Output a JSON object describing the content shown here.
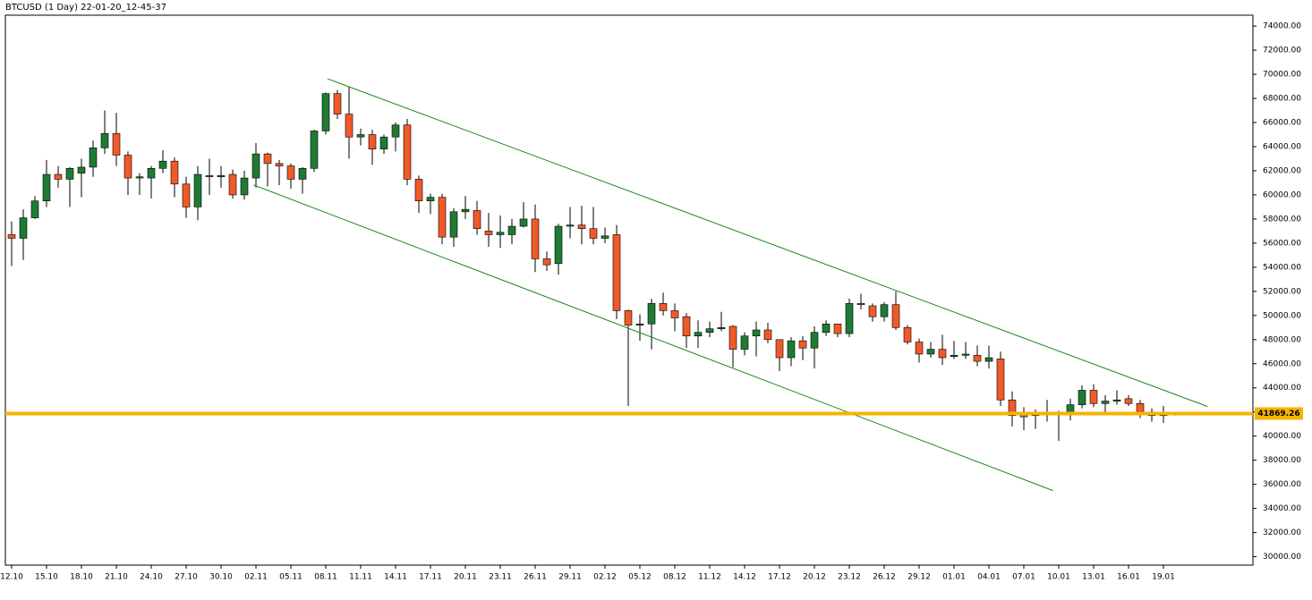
{
  "chart_data": {
    "type": "candlestick",
    "title": "BTCUSD (1 Day) 22-01-20_12-45-37",
    "categories": [
      "12.10",
      null,
      null,
      "15.10",
      null,
      null,
      "18.10",
      null,
      null,
      "21.10",
      null,
      null,
      "24.10",
      null,
      null,
      "27.10",
      null,
      null,
      "30.10",
      null,
      null,
      "02.11",
      null,
      null,
      "05.11",
      null,
      null,
      "08.11",
      null,
      null,
      "11.11",
      null,
      null,
      "14.11",
      null,
      null,
      "17.11",
      null,
      null,
      "20.11",
      null,
      null,
      "23.11",
      null,
      null,
      "26.11",
      null,
      null,
      "29.11",
      null,
      null,
      "02.12",
      null,
      null,
      "05.12",
      null,
      null,
      "08.12",
      null,
      null,
      "11.12",
      null,
      null,
      "14.12",
      null,
      null,
      "17.12",
      null,
      null,
      "20.12",
      null,
      null,
      "23.12",
      null,
      null,
      "26.12",
      null,
      null,
      "29.12",
      null,
      null,
      "01.01",
      null,
      null,
      "04.01",
      null,
      null,
      "07.01",
      null,
      null,
      "10.01",
      null,
      null,
      "13.01",
      null,
      null,
      "16.01",
      null,
      null,
      "19.01",
      null
    ],
    "open": [
      56700,
      56400,
      58100,
      59500,
      61700,
      61300,
      61800,
      62300,
      63900,
      65100,
      63300,
      61400,
      61400,
      62200,
      62800,
      60900,
      59000,
      61600,
      61500,
      61700,
      60000,
      61400,
      63400,
      62600,
      62400,
      61300,
      62200,
      65300,
      68400,
      66700,
      64800,
      65000,
      63800,
      64800,
      65800,
      61300,
      59500,
      59800,
      56500,
      58600,
      58700,
      57000,
      56700,
      56700,
      57400,
      58000,
      54700,
      54300,
      57400,
      57500,
      57200,
      56400,
      56700,
      50400,
      49200,
      49300,
      51000,
      50400,
      49900,
      48300,
      48600,
      48900,
      49100,
      47200,
      48300,
      48800,
      48000,
      46500,
      47900,
      47300,
      48600,
      49300,
      48500,
      51000,
      50800,
      49900,
      50900,
      49000,
      47800,
      46800,
      47200,
      46600,
      46700,
      46700,
      46200,
      46400,
      43000,
      41800,
      41700,
      41800,
      41900,
      41900,
      42600,
      43800,
      42700,
      42900,
      43100,
      42700,
      42000,
      41700,
      41800
    ],
    "high": [
      57800,
      58800,
      59900,
      62900,
      62400,
      62300,
      63000,
      64500,
      67000,
      66800,
      63600,
      61800,
      62400,
      63700,
      63100,
      61500,
      62400,
      63000,
      62400,
      62100,
      62000,
      64300,
      63500,
      62900,
      62600,
      62300,
      65400,
      68500,
      68700,
      69000,
      65500,
      65400,
      65000,
      66000,
      66300,
      61600,
      60100,
      60100,
      58900,
      59900,
      59500,
      58500,
      58300,
      58000,
      59400,
      59200,
      55300,
      57600,
      59000,
      59100,
      59000,
      57300,
      57500,
      50500,
      50100,
      51400,
      51900,
      51000,
      50200,
      49600,
      49500,
      50300,
      49200,
      48600,
      49500,
      49400,
      48000,
      48200,
      48300,
      49100,
      49600,
      49300,
      51400,
      51800,
      51000,
      51100,
      52000,
      49200,
      48100,
      47800,
      48400,
      47900,
      47800,
      47500,
      47500,
      47000,
      43700,
      42400,
      42200,
      43000,
      42100,
      43100,
      44200,
      44300,
      43400,
      43800,
      43400,
      43000,
      42300,
      42500,
      42000
    ],
    "low": [
      54100,
      54600,
      58000,
      59000,
      60600,
      59000,
      59800,
      61500,
      63400,
      62400,
      60000,
      60000,
      59700,
      61800,
      59800,
      58100,
      57900,
      60000,
      60600,
      59700,
      59600,
      60600,
      60700,
      60800,
      60500,
      60100,
      61900,
      65000,
      66300,
      63000,
      64100,
      62500,
      63400,
      63600,
      60800,
      58500,
      58400,
      55900,
      55700,
      58000,
      56700,
      55700,
      55600,
      55900,
      57300,
      53600,
      53700,
      53400,
      56400,
      55900,
      55900,
      56000,
      49700,
      42500,
      47900,
      47200,
      50000,
      48700,
      47300,
      47300,
      48200,
      48700,
      45700,
      46700,
      46600,
      47700,
      45400,
      45800,
      46300,
      45600,
      48300,
      48200,
      48200,
      50500,
      49500,
      49500,
      48800,
      47600,
      46100,
      46500,
      45900,
      46400,
      46400,
      45800,
      45600,
      42500,
      40800,
      40500,
      40600,
      41200,
      39600,
      41300,
      42300,
      42400,
      41800,
      42600,
      42500,
      41500,
      41200,
      41100,
      41700
    ],
    "close": [
      56400,
      58100,
      59500,
      61700,
      61300,
      62200,
      62300,
      63900,
      65100,
      63300,
      61400,
      61500,
      62200,
      62800,
      60900,
      59000,
      61700,
      61500,
      61600,
      60000,
      61400,
      63400,
      62600,
      62400,
      61300,
      62200,
      65300,
      68400,
      66700,
      64800,
      65000,
      63800,
      64800,
      65800,
      61300,
      59500,
      59800,
      56500,
      58600,
      58800,
      57200,
      56700,
      56900,
      57400,
      58000,
      54700,
      54200,
      57400,
      57500,
      57200,
      56400,
      56600,
      50400,
      49200,
      49300,
      51000,
      50400,
      49800,
      48300,
      48600,
      48900,
      49000,
      47200,
      48300,
      48800,
      48000,
      46500,
      47900,
      47300,
      48600,
      49300,
      48500,
      51000,
      50900,
      49900,
      50900,
      49000,
      47800,
      46800,
      47200,
      46500,
      46700,
      46800,
      46200,
      46500,
      43000,
      41700,
      41600,
      41900,
      41900,
      41900,
      42600,
      43800,
      42700,
      42900,
      43000,
      42700,
      42000,
      41700,
      41800,
      41869.26
    ],
    "up_color": "#1e7b34",
    "down_color": "#f05a28",
    "ylim": [
      29300,
      74900
    ],
    "yticks": [
      {
        "value": 30000,
        "label": "30000.00"
      },
      {
        "value": 32000,
        "label": "32000.00"
      },
      {
        "value": 34000,
        "label": "34000.00"
      },
      {
        "value": 36000,
        "label": "36000.00"
      },
      {
        "value": 38000,
        "label": "38000.00"
      },
      {
        "value": 40000,
        "label": "40000.00"
      },
      {
        "value": 42000,
        "label": "42000.00"
      },
      {
        "value": 44000,
        "label": "44000.00"
      },
      {
        "value": 46000,
        "label": "46000.00"
      },
      {
        "value": 48000,
        "label": "48000.00"
      },
      {
        "value": 50000,
        "label": "50000.00"
      },
      {
        "value": 52000,
        "label": "52000.00"
      },
      {
        "value": 54000,
        "label": "54000.00"
      },
      {
        "value": 56000,
        "label": "56000.00"
      },
      {
        "value": 58000,
        "label": "58000.00"
      },
      {
        "value": 60000,
        "label": "60000.00"
      },
      {
        "value": 62000,
        "label": "62000.00"
      },
      {
        "value": 64000,
        "label": "64000.00"
      },
      {
        "value": 66000,
        "label": "66000.00"
      },
      {
        "value": 68000,
        "label": "68000.00"
      },
      {
        "value": 70000,
        "label": "70000.00"
      },
      {
        "value": 72000,
        "label": "72000.00"
      },
      {
        "value": 74000,
        "label": "74000.00"
      }
    ],
    "price_line": {
      "value": 41869.26,
      "label": "41869.26",
      "color": "#f5b400"
    },
    "trendlines": [
      {
        "x": [
          27.15,
          102.8
        ],
        "values": [
          69630,
          42450
        ],
        "color": "#1a8a1a"
      },
      {
        "x": [
          20.8,
          89.5
        ],
        "values": [
          60820,
          35480
        ],
        "color": "#1a8a1a"
      }
    ]
  }
}
